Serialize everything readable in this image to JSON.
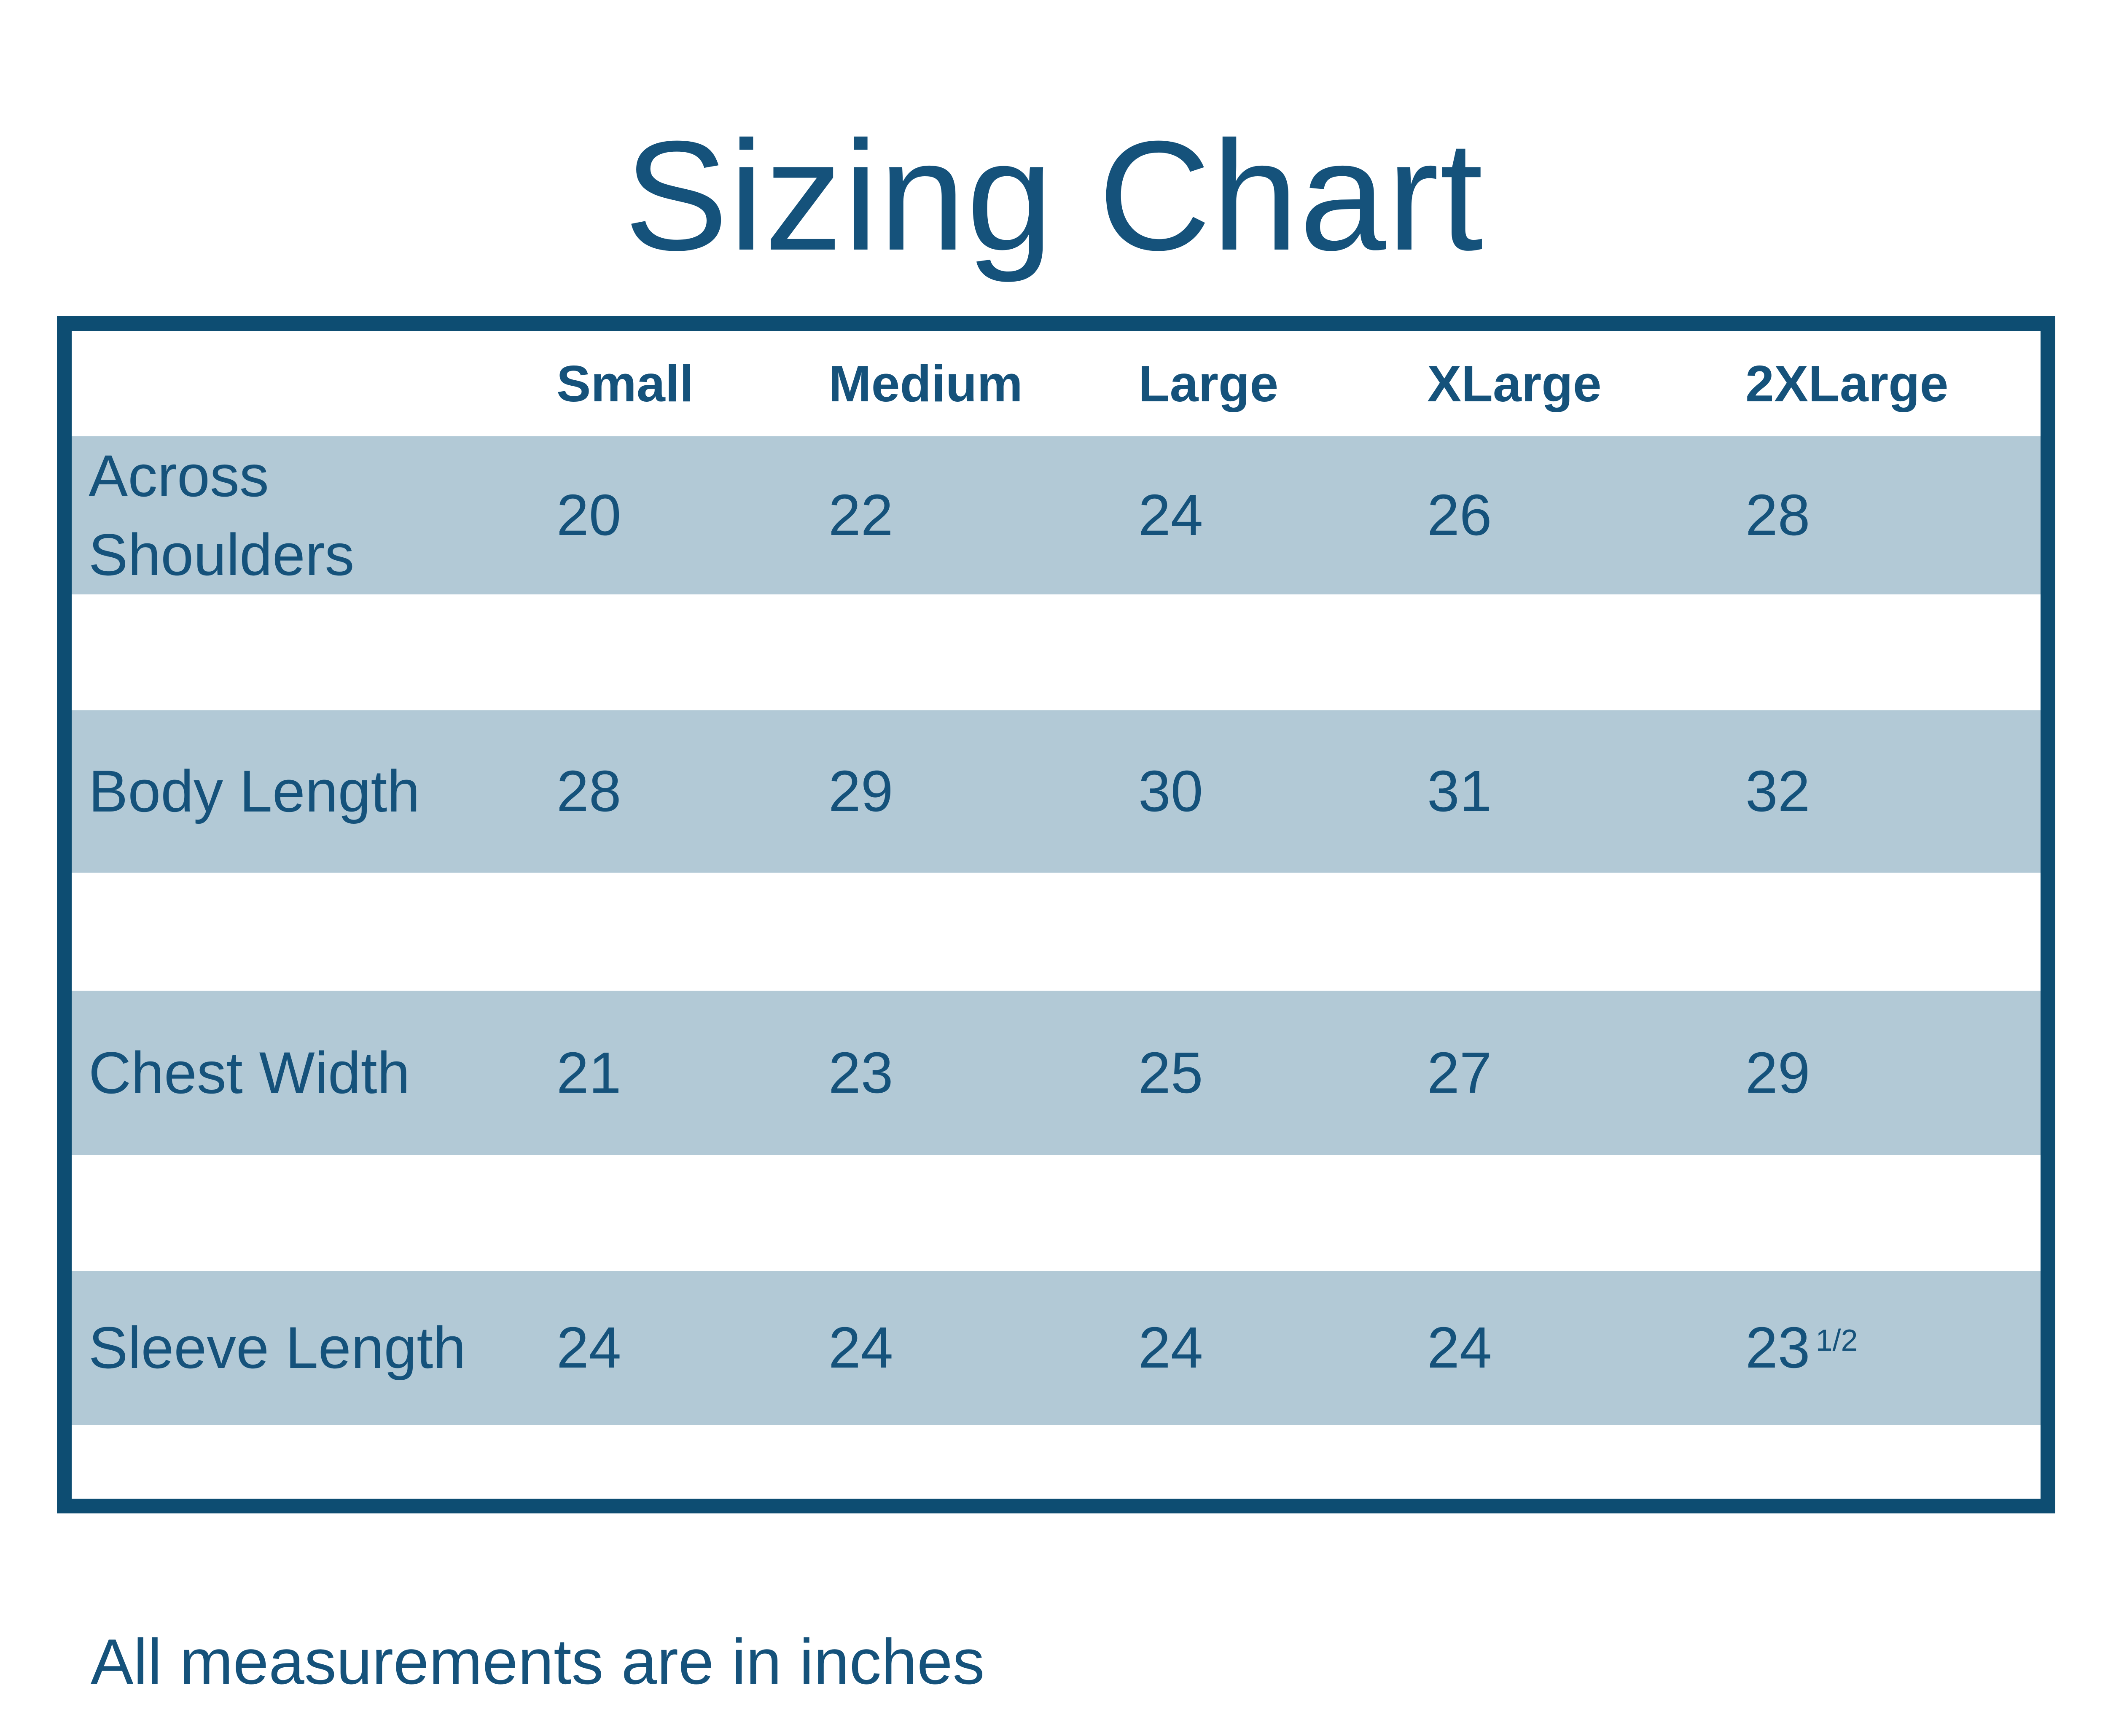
{
  "title": "Sizing Chart",
  "footer_note": "All measurements are in inches",
  "colors": {
    "ink": "#15527b",
    "border": "#0d4d72",
    "row_bg": "#b2c9d6",
    "page_bg": "#ffffff"
  },
  "chart_data": {
    "type": "table",
    "title": "Sizing Chart",
    "columns": [
      "Small",
      "Medium",
      "Large",
      "XLarge",
      "2XLarge"
    ],
    "rows": [
      {
        "label": "Across Shoulders",
        "values": [
          "20",
          "22",
          "24",
          "26",
          "28"
        ]
      },
      {
        "label": "Body Length",
        "values": [
          "28",
          "29",
          "30",
          "31",
          "32"
        ]
      },
      {
        "label": "Chest Width",
        "values": [
          "21",
          "23",
          "25",
          "27",
          "29"
        ]
      },
      {
        "label": "Sleeve Length",
        "values": [
          "24",
          "24",
          "24",
          "24",
          "23 1/2"
        ]
      }
    ],
    "note": "All measurements are in inches"
  }
}
